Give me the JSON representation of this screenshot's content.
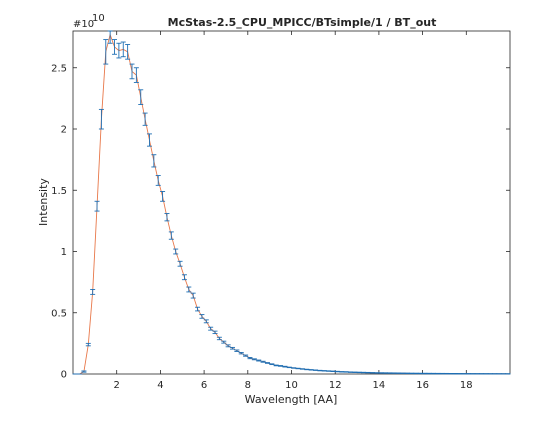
{
  "chart_data": {
    "type": "line",
    "title": "McStas-2.5_CPU_MPICC/BTsimple/1 / BT_out",
    "xlabel": "Wavelength [AA]",
    "ylabel": "Intensity",
    "y_multiplier_label": "#10",
    "y_multiplier_exponent": "10",
    "xlim": [
      0,
      20
    ],
    "ylim": [
      0,
      2.8
    ],
    "x_ticks": [
      2,
      4,
      6,
      8,
      10,
      12,
      14,
      16,
      18
    ],
    "y_ticks": [
      0,
      0.5,
      1,
      1.5,
      2,
      2.5
    ],
    "x_tick_labels": [
      "2",
      "4",
      "6",
      "8",
      "10",
      "12",
      "14",
      "16",
      "18"
    ],
    "y_tick_labels": [
      "0",
      "0.5",
      "1",
      "1.5",
      "2",
      "2.5"
    ],
    "grid": false,
    "legend": "none",
    "colors": {
      "line": "#e8784a",
      "errorbar": "#1f6fb4",
      "axis": "#262626"
    },
    "series": [
      {
        "x": [
          0.1,
          0.3,
          0.5,
          0.7,
          0.9,
          1.1,
          1.3,
          1.5,
          1.7,
          1.9,
          2.1,
          2.3,
          2.5,
          2.7,
          2.9,
          3.1,
          3.3,
          3.5,
          3.7,
          3.9,
          4.1,
          4.3,
          4.5,
          4.7,
          4.9,
          5.1,
          5.3,
          5.5,
          5.7,
          5.9,
          6.1,
          6.3,
          6.5,
          6.7,
          6.9,
          7.1,
          7.3,
          7.5,
          7.7,
          7.9,
          8.1,
          8.3,
          8.5,
          8.7,
          8.9,
          9.1,
          9.3,
          9.5,
          9.7,
          9.9,
          10.1,
          10.3,
          10.5,
          10.7,
          10.9,
          11.1,
          11.3,
          11.5,
          11.7,
          11.9,
          12.1,
          12.3,
          12.5,
          12.7,
          12.9,
          13.1,
          13.3,
          13.5,
          13.7,
          13.9,
          14.1,
          14.3,
          14.5,
          14.7,
          14.9,
          15.1,
          15.3,
          15.5,
          15.7,
          15.9,
          16.1,
          16.3,
          16.5,
          16.7,
          16.9,
          17.1,
          17.3,
          17.5,
          17.7,
          17.9,
          18.1,
          18.3,
          18.5,
          18.7,
          18.9,
          19.1,
          19.3,
          19.5,
          19.7,
          19.9
        ],
        "values": [
          0,
          0,
          0.02,
          0.24,
          0.67,
          1.37,
          2.08,
          2.63,
          2.77,
          2.67,
          2.64,
          2.65,
          2.63,
          2.47,
          2.44,
          2.26,
          2.08,
          1.91,
          1.74,
          1.58,
          1.45,
          1.28,
          1.13,
          1.0,
          0.9,
          0.79,
          0.69,
          0.64,
          0.53,
          0.47,
          0.43,
          0.37,
          0.34,
          0.29,
          0.26,
          0.23,
          0.21,
          0.19,
          0.17,
          0.15,
          0.13,
          0.12,
          0.11,
          0.1,
          0.09,
          0.08,
          0.07,
          0.066,
          0.06,
          0.054,
          0.049,
          0.045,
          0.041,
          0.037,
          0.034,
          0.031,
          0.028,
          0.026,
          0.024,
          0.022,
          0.02,
          0.018,
          0.017,
          0.015,
          0.014,
          0.013,
          0.012,
          0.011,
          0.01,
          0.009,
          0.0085,
          0.008,
          0.0075,
          0.007,
          0.0065,
          0.006,
          0.0055,
          0.005,
          0.0047,
          0.0044,
          0.0041,
          0.0038,
          0.0035,
          0.0032,
          0.003,
          0.0028,
          0.0026,
          0.0024,
          0.0022,
          0.002,
          0.0019,
          0.0018,
          0.0017,
          0.0016,
          0.0015,
          0.0014,
          0.0013,
          0.0012,
          0.0011,
          0.001
        ],
        "errors": [
          0,
          0,
          0.005,
          0.01,
          0.02,
          0.04,
          0.08,
          0.1,
          0.07,
          0.06,
          0.06,
          0.06,
          0.06,
          0.06,
          0.06,
          0.06,
          0.05,
          0.05,
          0.05,
          0.04,
          0.04,
          0.03,
          0.03,
          0.02,
          0.02,
          0.02,
          0.02,
          0.02,
          0.015,
          0.015,
          0.012,
          0.012,
          0.01,
          0.01,
          0.008,
          0.008,
          0.007,
          0.006,
          0.006,
          0.005,
          0.005,
          0.004,
          0.004,
          0.004,
          0.003,
          0.003,
          0.003,
          0.003,
          0.003,
          0.002,
          0.002,
          0.002,
          0.002,
          0.002,
          0.002,
          0.002,
          0.002,
          0.002,
          0.002,
          0.002,
          0.002,
          0.002,
          0.002,
          0.002,
          0.002,
          0.002,
          0.002,
          0.002,
          0.002,
          0.002,
          0.002,
          0.002,
          0.002,
          0.002,
          0.002,
          0.002,
          0.002,
          0.002,
          0.002,
          0.002,
          0.002,
          0.002,
          0.002,
          0.002,
          0.002,
          0.002,
          0.002,
          0.002,
          0.002,
          0.002,
          0.002,
          0.002,
          0.002,
          0.002,
          0.002,
          0.002,
          0.002,
          0.002,
          0.002,
          0.002
        ]
      }
    ]
  }
}
